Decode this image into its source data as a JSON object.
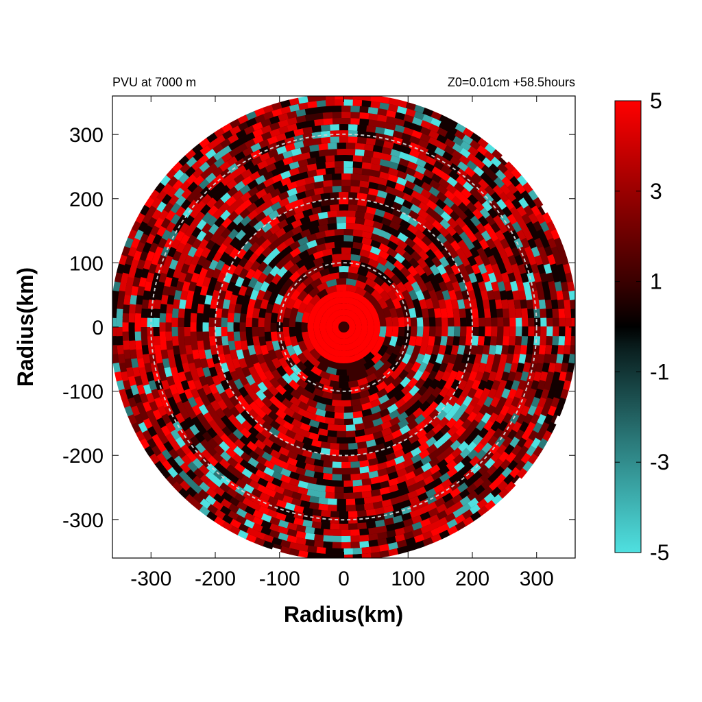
{
  "chart_data": {
    "type": "heatmap",
    "title_left": "PVU at  7000 m",
    "title_right": "Z0=0.01cm  +58.5hours",
    "xlabel": "Radius(km)",
    "ylabel": "Radius(km)",
    "xlim": [
      -360,
      360
    ],
    "ylim": [
      -360,
      360
    ],
    "x_ticks": [
      -300,
      -200,
      -100,
      0,
      100,
      200,
      300
    ],
    "y_ticks": [
      300,
      200,
      100,
      0,
      -100,
      -200,
      -300
    ],
    "reference_circles_km": [
      100,
      200,
      300
    ],
    "colorbar": {
      "range": [
        -5,
        5
      ],
      "tick_labels": [
        5,
        3,
        1,
        -1,
        -3,
        -5
      ],
      "color_low": "#4fe0e0",
      "color_mid": "#000000",
      "color_high": "#ff0000"
    }
  }
}
